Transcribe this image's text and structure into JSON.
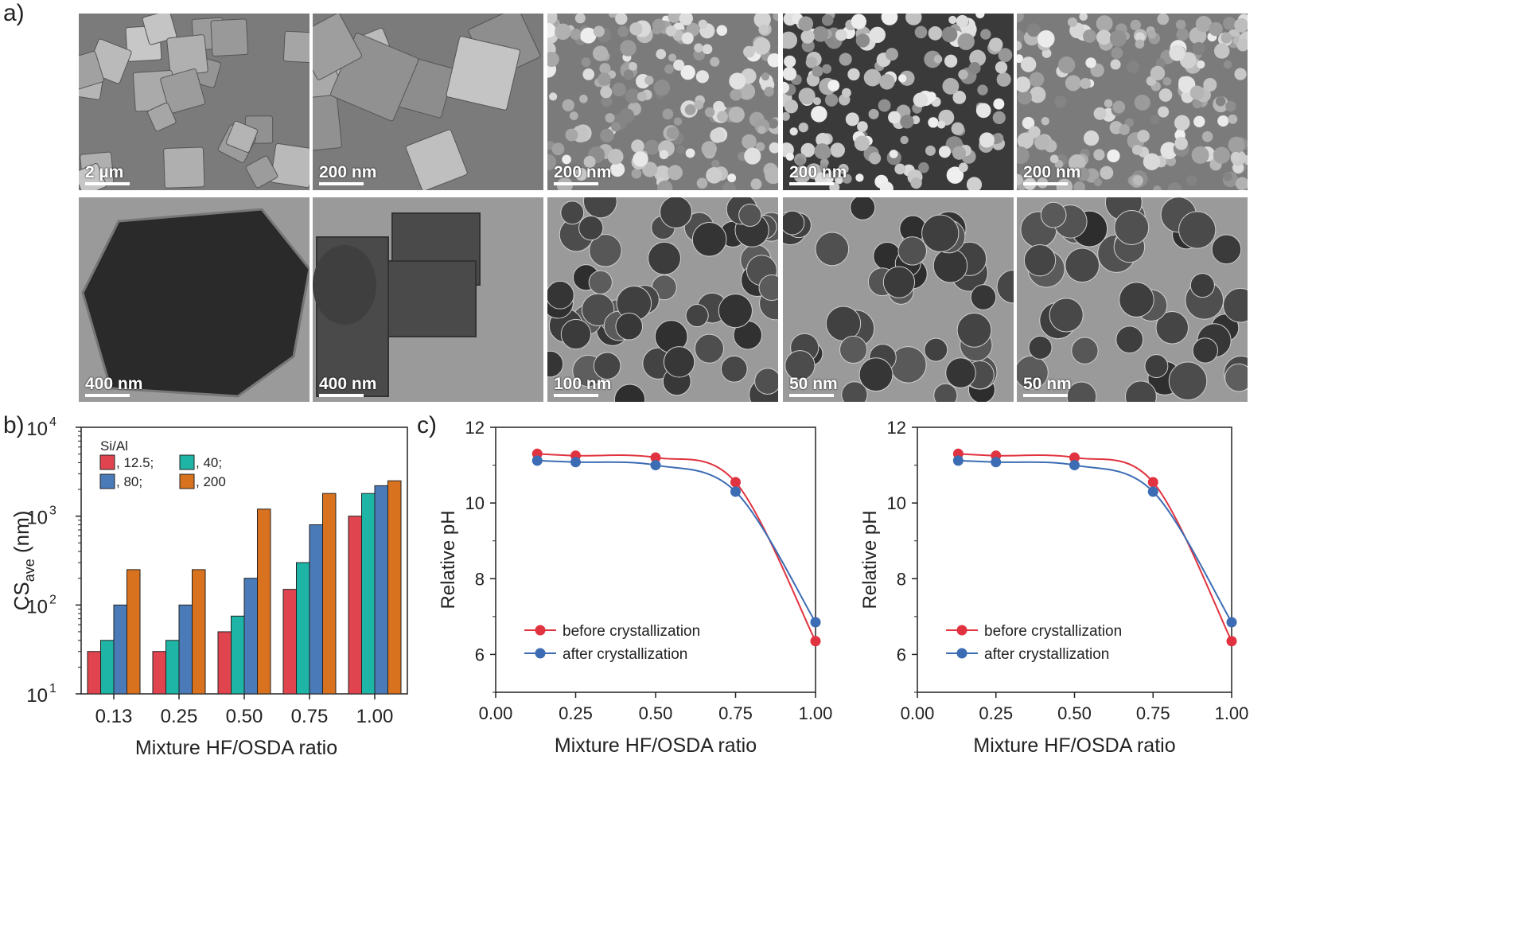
{
  "panel_labels": {
    "a": "a)",
    "b": "b)",
    "c": "c)"
  },
  "micrographs": {
    "sem": [
      {
        "scale": "2 µm"
      },
      {
        "scale": "200 nm"
      },
      {
        "scale": "200 nm"
      },
      {
        "scale": "200 nm"
      },
      {
        "scale": "200 nm"
      }
    ],
    "tem": [
      {
        "scale": "400 nm"
      },
      {
        "scale": "400 nm"
      },
      {
        "scale": "100 nm"
      },
      {
        "scale": "50 nm"
      },
      {
        "scale": "50 nm"
      }
    ]
  },
  "chart_data": [
    {
      "type": "bar",
      "panel": "b",
      "categories": [
        "0.13",
        "0.25",
        "0.50",
        "0.75",
        "1.00"
      ],
      "xlabel": "Mixture HF/OSDA ratio",
      "ylabel": "CS",
      "ylabel_sub": "ave",
      "ylabel_unit": " (nm)",
      "yscale": "log",
      "ylim": [
        10,
        10000
      ],
      "ytick_labels": [
        {
          "base": "10",
          "exp": "1"
        },
        {
          "base": "10",
          "exp": "2"
        },
        {
          "base": "10",
          "exp": "3"
        },
        {
          "base": "10",
          "exp": "4"
        }
      ],
      "legend_title": "Si/Al",
      "legend_placement": "top-left",
      "series": [
        {
          "name": ", 12.5;",
          "color": "#e0454f",
          "values": [
            30,
            30,
            50,
            150,
            1000
          ]
        },
        {
          "name": ", 40;",
          "color": "#1fb5a6",
          "values": [
            40,
            40,
            75,
            300,
            1800
          ]
        },
        {
          "name": ", 80;",
          "color": "#4a7ab8",
          "values": [
            100,
            100,
            200,
            800,
            2200
          ]
        },
        {
          "name": ", 200",
          "color": "#d8721e",
          "values": [
            250,
            250,
            1200,
            1800,
            2500
          ]
        }
      ]
    },
    {
      "type": "line",
      "panel": "c-left",
      "xlabel": "Mixture HF/OSDA ratio",
      "ylabel": "Relative pH",
      "xlim": [
        0.0,
        1.0
      ],
      "ylim": [
        5.0,
        12.0
      ],
      "xticks": [
        "0.00",
        "0.25",
        "0.50",
        "0.75",
        "1.00"
      ],
      "yticks": [
        "6",
        "8",
        "10",
        "12"
      ],
      "legend_placement": "bottom-left",
      "series": [
        {
          "name": "before crystallization",
          "color": "#e0333f",
          "x": [
            0.13,
            0.25,
            0.5,
            0.75,
            1.0
          ],
          "y": [
            11.3,
            11.25,
            11.2,
            10.55,
            6.35
          ]
        },
        {
          "name": "after crystallization",
          "color": "#3c6cb4",
          "x": [
            0.13,
            0.25,
            0.5,
            0.75,
            1.0
          ],
          "y": [
            11.12,
            11.08,
            11.0,
            10.3,
            6.85
          ]
        }
      ]
    },
    {
      "type": "line",
      "panel": "c-right",
      "xlabel": "Mixture HF/OSDA ratio",
      "ylabel": "Relative pH",
      "xlim": [
        0.0,
        1.0
      ],
      "ylim": [
        5.0,
        12.0
      ],
      "xticks": [
        "0.00",
        "0.25",
        "0.50",
        "0.75",
        "1.00"
      ],
      "yticks": [
        "6",
        "8",
        "10",
        "12"
      ],
      "legend_placement": "bottom-left",
      "series": [
        {
          "name": "before crystallization",
          "color": "#e0333f",
          "x": [
            0.13,
            0.25,
            0.5,
            0.75,
            1.0
          ],
          "y": [
            11.3,
            11.25,
            11.2,
            10.55,
            6.35
          ]
        },
        {
          "name": "after crystallization",
          "color": "#3c6cb4",
          "x": [
            0.13,
            0.25,
            0.5,
            0.75,
            1.0
          ],
          "y": [
            11.12,
            11.08,
            11.0,
            10.3,
            6.85
          ]
        }
      ]
    }
  ]
}
